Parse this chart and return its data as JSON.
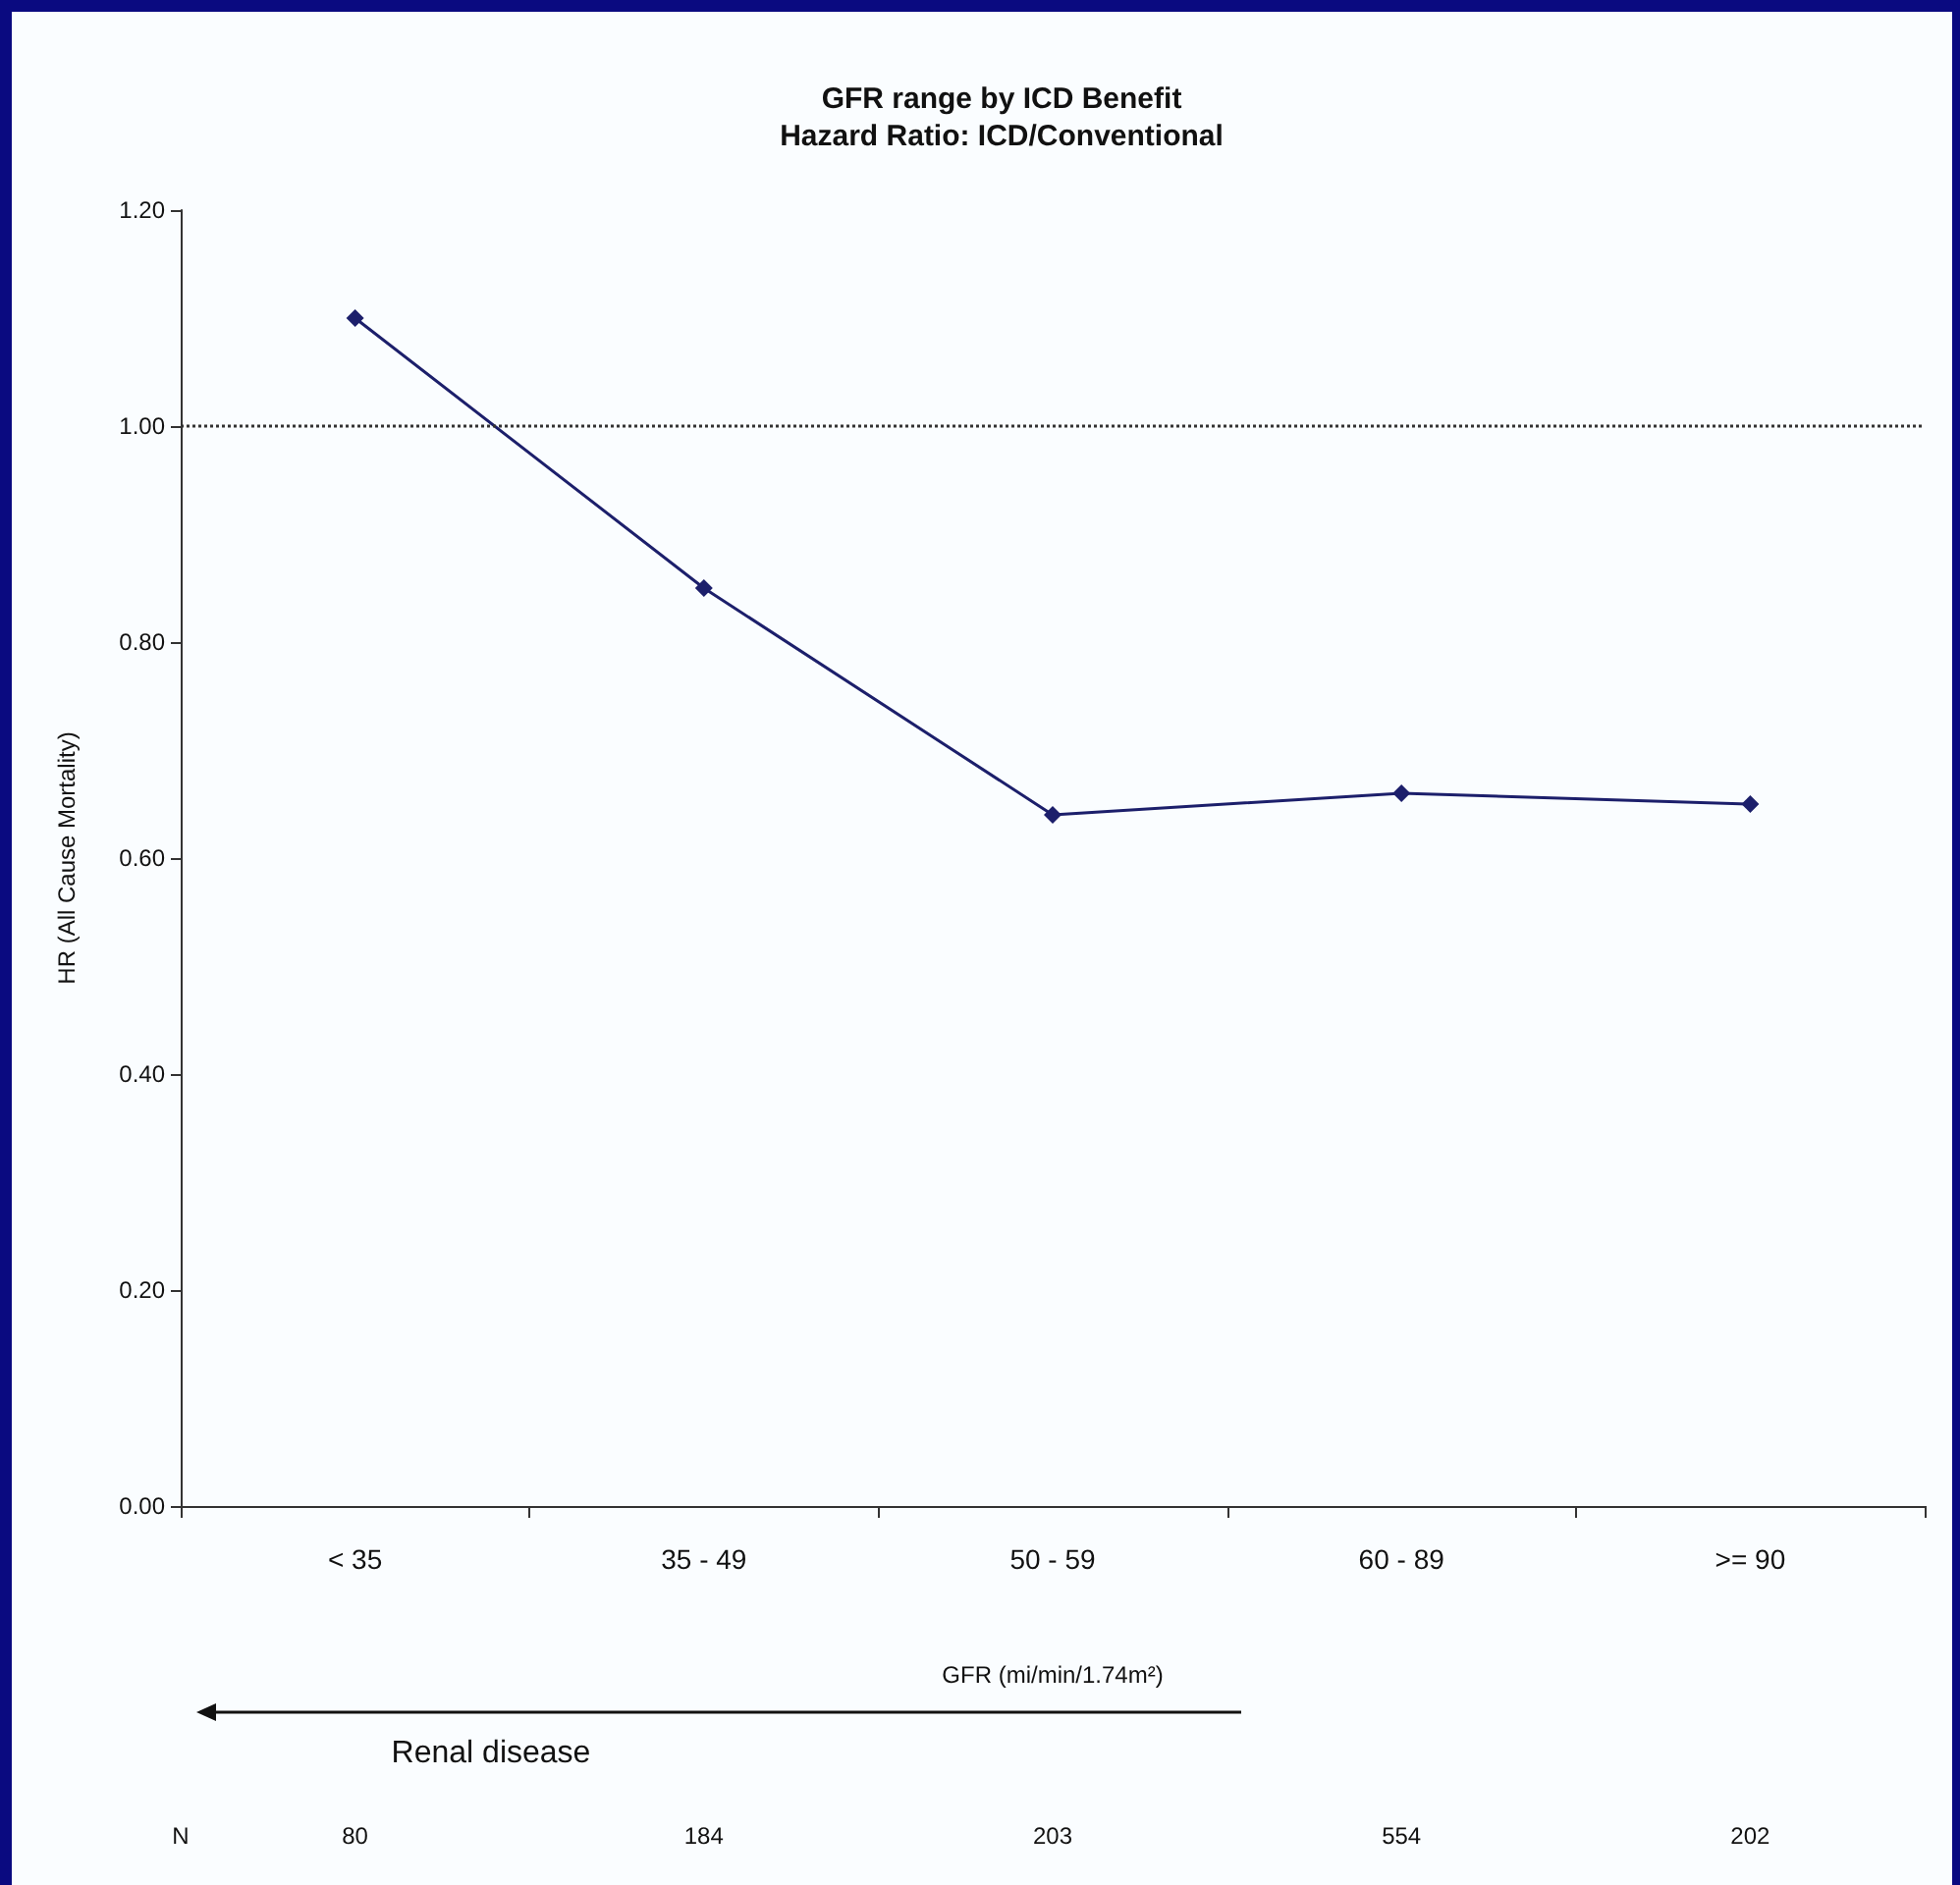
{
  "chart_data": {
    "type": "line",
    "title": "GFR range by ICD Benefit",
    "subtitle": "Hazard Ratio: ICD/Conventional",
    "xlabel": "GFR (mi/min/1.74m²)",
    "ylabel": "HR (All Cause Mortality)",
    "categories": [
      "< 35",
      "35 - 49",
      "50 - 59",
      "60 - 89",
      ">= 90"
    ],
    "series": [
      {
        "color": "#1c1f6b",
        "values": [
          1.1,
          0.85,
          0.64,
          0.66,
          0.65
        ]
      }
    ],
    "ylim": [
      0,
      1.2
    ],
    "yticks": [
      {
        "value": 0,
        "label": "0.00"
      },
      {
        "value": 0.2,
        "label": "0.20"
      },
      {
        "value": 0.4,
        "label": "0.40"
      },
      {
        "value": 0.6,
        "label": "0.60"
      },
      {
        "value": 0.8,
        "label": "0.80"
      },
      {
        "value": 1.0,
        "label": "1.00"
      },
      {
        "value": 1.2,
        "label": "1.20"
      }
    ],
    "ref_lines": [
      {
        "axis": "y",
        "value": 1.0,
        "color": "#333333",
        "line_style": "dotted"
      }
    ],
    "marker": "diamond",
    "line_style": "solid",
    "grid": false,
    "annotations": [
      "Renal disease",
      "N",
      "80",
      "184",
      "203",
      "554",
      "202"
    ]
  }
}
